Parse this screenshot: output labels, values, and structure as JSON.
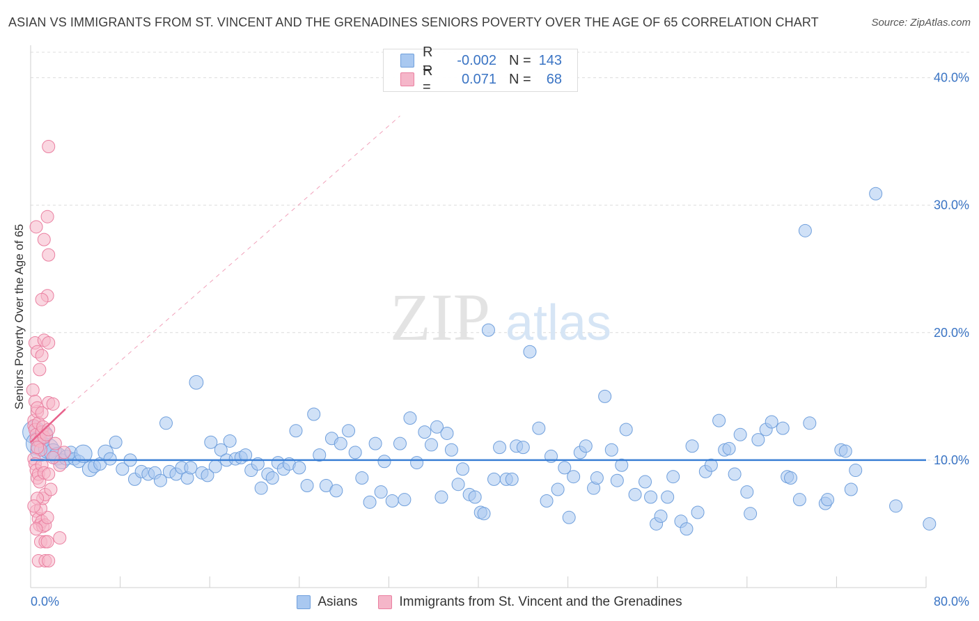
{
  "header": {
    "title": "ASIAN VS IMMIGRANTS FROM ST. VINCENT AND THE GRENADINES SENIORS POVERTY OVER THE AGE OF 65 CORRELATION CHART",
    "source": "Source: ZipAtlas.com"
  },
  "watermark": {
    "zip": "ZIP",
    "atlas": "atlas"
  },
  "stats": {
    "r_label": "R =",
    "n_label": "N =",
    "rows": [
      {
        "series": "Asians",
        "r": "-0.002",
        "n": "143"
      },
      {
        "series": "Immigrants from St. Vincent and the Grenadines",
        "r": "0.071",
        "n": "68"
      }
    ]
  },
  "colors": {
    "blue_fill": "#a9c8f0",
    "blue_stroke": "#6f9fdc",
    "blue_line": "#3a7fd5",
    "pink_fill": "#f5b6c9",
    "pink_stroke": "#ea7fa0",
    "pink_line": "#e8628c",
    "grid": "#dcdcdc",
    "tick_label": "#3a74c4"
  },
  "chart_data": {
    "type": "scatter",
    "title": "ASIAN VS IMMIGRANTS FROM ST. VINCENT AND THE GRENADINES SENIORS POVERTY OVER THE AGE OF 65 CORRELATION CHART",
    "xlabel": "",
    "ylabel": "Seniors Poverty Over the Age of 65",
    "xlim": [
      0,
      80
    ],
    "ylim": [
      0,
      42
    ],
    "x_tick_labels": [
      {
        "value": 0,
        "label": "0.0%"
      },
      {
        "value": 80,
        "label": "80.0%"
      }
    ],
    "y_tick_labels": [
      {
        "value": 10,
        "label": "10.0%"
      },
      {
        "value": 20,
        "label": "20.0%"
      },
      {
        "value": 30,
        "label": "30.0%"
      },
      {
        "value": 40,
        "label": "40.0%"
      }
    ],
    "x_minor_ticks": [
      0,
      8,
      16,
      24,
      32,
      40,
      48,
      56,
      64,
      72,
      80
    ],
    "grid": true,
    "legend_position": "bottom",
    "series": [
      {
        "name": "Asians",
        "color": "#a9c8f0",
        "trend": {
          "x": [
            0,
            80
          ],
          "y": [
            10.0,
            10.0
          ],
          "style": "solid"
        },
        "points": [
          [
            0.3,
            12.2,
            1.8
          ],
          [
            0.6,
            11.3,
            1.8
          ],
          [
            0.9,
            10.7,
            1.6
          ],
          [
            1.2,
            12.0,
            1.4
          ],
          [
            1.6,
            10.9,
            1.6
          ],
          [
            2.0,
            10.6,
            1.4
          ],
          [
            2.4,
            10.3,
            1.4
          ],
          [
            2.8,
            9.9,
            1.2
          ],
          [
            3.2,
            10.2,
            1.2
          ],
          [
            3.6,
            10.6,
            1.0
          ],
          [
            3.9,
            10.1,
            1.0
          ],
          [
            4.3,
            9.9,
            1.0
          ],
          [
            4.7,
            10.5,
            1.4
          ],
          [
            5.3,
            9.3,
            1.2
          ],
          [
            5.7,
            9.5,
            1.0
          ],
          [
            6.2,
            9.7,
            1.0
          ],
          [
            6.7,
            10.6,
            1.2
          ],
          [
            7.1,
            10.1,
            1.0
          ],
          [
            7.6,
            11.4,
            1.0
          ],
          [
            8.2,
            9.3,
            1.0
          ],
          [
            8.9,
            10.0,
            1.0
          ],
          [
            9.3,
            8.5,
            1.0
          ],
          [
            9.9,
            9.1,
            1.0
          ],
          [
            10.5,
            8.9,
            1.0
          ],
          [
            11.1,
            9.0,
            1.0
          ],
          [
            11.6,
            8.4,
            1.0
          ],
          [
            12.1,
            12.9,
            1.0
          ],
          [
            12.4,
            9.1,
            1.0
          ],
          [
            13.0,
            8.9,
            1.0
          ],
          [
            13.5,
            9.4,
            1.0
          ],
          [
            14.0,
            8.6,
            1.0
          ],
          [
            14.3,
            9.4,
            1.0
          ],
          [
            14.8,
            16.1,
            1.1
          ],
          [
            15.3,
            9.0,
            1.0
          ],
          [
            15.8,
            8.8,
            1.0
          ],
          [
            16.1,
            11.4,
            1.0
          ],
          [
            16.5,
            9.5,
            1.0
          ],
          [
            17.0,
            10.8,
            1.0
          ],
          [
            17.5,
            10.0,
            1.0
          ],
          [
            17.8,
            11.5,
            1.0
          ],
          [
            18.3,
            10.1,
            1.0
          ],
          [
            18.8,
            10.2,
            1.0
          ],
          [
            19.2,
            10.4,
            1.0
          ],
          [
            19.7,
            9.2,
            1.0
          ],
          [
            20.3,
            9.7,
            1.0
          ],
          [
            20.6,
            7.8,
            1.0
          ],
          [
            21.2,
            8.9,
            1.0
          ],
          [
            21.6,
            8.6,
            1.0
          ],
          [
            22.1,
            9.8,
            1.0
          ],
          [
            22.6,
            9.3,
            1.0
          ],
          [
            23.1,
            9.7,
            1.0
          ],
          [
            23.7,
            12.3,
            1.0
          ],
          [
            24.0,
            9.4,
            1.0
          ],
          [
            24.7,
            8.0,
            1.0
          ],
          [
            25.3,
            13.6,
            1.0
          ],
          [
            25.8,
            10.4,
            1.0
          ],
          [
            26.4,
            8.0,
            1.0
          ],
          [
            26.9,
            11.7,
            1.0
          ],
          [
            27.3,
            7.6,
            1.0
          ],
          [
            27.7,
            11.3,
            1.0
          ],
          [
            28.4,
            12.3,
            1.0
          ],
          [
            29.0,
            10.6,
            1.0
          ],
          [
            29.6,
            8.6,
            1.0
          ],
          [
            30.3,
            6.7,
            1.0
          ],
          [
            30.8,
            11.3,
            1.0
          ],
          [
            31.3,
            7.5,
            1.0
          ],
          [
            31.6,
            9.9,
            1.0
          ],
          [
            32.3,
            6.8,
            1.0
          ],
          [
            33.0,
            11.3,
            1.0
          ],
          [
            33.4,
            6.9,
            1.0
          ],
          [
            33.9,
            13.3,
            1.0
          ],
          [
            34.5,
            9.8,
            1.0
          ],
          [
            35.2,
            12.2,
            1.0
          ],
          [
            35.8,
            11.2,
            1.0
          ],
          [
            36.3,
            12.6,
            1.0
          ],
          [
            36.7,
            7.1,
            1.0
          ],
          [
            37.2,
            12.1,
            1.0
          ],
          [
            37.6,
            10.8,
            1.0
          ],
          [
            38.2,
            8.1,
            1.0
          ],
          [
            38.6,
            9.3,
            1.0
          ],
          [
            39.2,
            7.3,
            1.0
          ],
          [
            39.7,
            7.1,
            1.0
          ],
          [
            40.2,
            5.9,
            1.0
          ],
          [
            40.5,
            5.8,
            1.0
          ],
          [
            40.9,
            20.2,
            1.0
          ],
          [
            41.4,
            8.5,
            1.0
          ],
          [
            41.9,
            11.0,
            1.0
          ],
          [
            42.5,
            8.5,
            1.0
          ],
          [
            43.0,
            8.5,
            1.0
          ],
          [
            43.4,
            11.1,
            1.0
          ],
          [
            44.0,
            11.0,
            1.0
          ],
          [
            44.6,
            18.5,
            1.0
          ],
          [
            45.4,
            12.5,
            1.0
          ],
          [
            46.1,
            6.8,
            1.0
          ],
          [
            46.5,
            10.3,
            1.0
          ],
          [
            47.1,
            7.7,
            1.0
          ],
          [
            47.7,
            9.4,
            1.0
          ],
          [
            48.1,
            5.5,
            1.0
          ],
          [
            48.5,
            8.7,
            1.0
          ],
          [
            49.1,
            10.6,
            1.0
          ],
          [
            49.6,
            11.1,
            1.0
          ],
          [
            50.3,
            7.8,
            1.0
          ],
          [
            50.6,
            8.6,
            1.0
          ],
          [
            51.3,
            15.0,
            1.0
          ],
          [
            51.9,
            10.8,
            1.0
          ],
          [
            52.4,
            8.4,
            1.0
          ],
          [
            52.8,
            9.6,
            1.0
          ],
          [
            53.2,
            12.4,
            1.0
          ],
          [
            54.0,
            7.3,
            1.0
          ],
          [
            54.9,
            8.3,
            1.0
          ],
          [
            55.4,
            7.1,
            1.0
          ],
          [
            55.9,
            5.0,
            1.0
          ],
          [
            56.3,
            5.6,
            1.0
          ],
          [
            56.9,
            7.1,
            1.0
          ],
          [
            57.4,
            8.7,
            1.0
          ],
          [
            58.1,
            5.2,
            1.0
          ],
          [
            58.6,
            4.6,
            1.0
          ],
          [
            59.1,
            11.1,
            1.0
          ],
          [
            59.6,
            5.9,
            1.0
          ],
          [
            60.3,
            9.1,
            1.0
          ],
          [
            60.8,
            9.6,
            1.0
          ],
          [
            61.5,
            13.1,
            1.0
          ],
          [
            62.0,
            10.8,
            1.0
          ],
          [
            62.4,
            10.9,
            1.0
          ],
          [
            62.9,
            8.9,
            1.0
          ],
          [
            63.4,
            12.0,
            1.0
          ],
          [
            64.0,
            7.5,
            1.0
          ],
          [
            64.3,
            5.8,
            1.0
          ],
          [
            65.0,
            11.6,
            1.0
          ],
          [
            65.7,
            12.4,
            1.0
          ],
          [
            66.2,
            13.0,
            1.0
          ],
          [
            67.2,
            12.5,
            1.0
          ],
          [
            67.6,
            8.7,
            1.0
          ],
          [
            67.9,
            8.6,
            1.0
          ],
          [
            68.7,
            6.9,
            1.0
          ],
          [
            69.2,
            28.0,
            1.0
          ],
          [
            69.6,
            12.9,
            1.0
          ],
          [
            71.0,
            6.6,
            1.0
          ],
          [
            71.2,
            6.9,
            1.0
          ],
          [
            72.4,
            10.8,
            1.0
          ],
          [
            72.8,
            10.7,
            1.0
          ],
          [
            73.3,
            7.7,
            1.0
          ],
          [
            73.7,
            9.2,
            1.0
          ],
          [
            75.5,
            30.9,
            1.0
          ],
          [
            77.3,
            6.4,
            1.0
          ],
          [
            80.3,
            5.0,
            1.0
          ]
        ]
      },
      {
        "name": "Immigrants from St. Vincent and the Grenadines",
        "color": "#f5b6c9",
        "trend": {
          "x": [
            0,
            3.1
          ],
          "y": [
            11.4,
            14.0
          ],
          "style": "solid",
          "extended_dashed_to": [
            33.0,
            37.0
          ]
        },
        "points": [
          [
            0.2,
            15.5,
            1.0
          ],
          [
            0.3,
            13.1,
            1.0
          ],
          [
            0.3,
            12.7,
            1.0
          ],
          [
            0.4,
            12.4,
            1.0
          ],
          [
            0.5,
            12.0,
            1.0
          ],
          [
            0.5,
            11.6,
            1.0
          ],
          [
            0.6,
            13.8,
            1.0
          ],
          [
            0.7,
            12.9,
            1.0
          ],
          [
            0.8,
            11.5,
            1.0
          ],
          [
            0.9,
            10.8,
            1.0
          ],
          [
            1.0,
            12.2,
            1.0
          ],
          [
            1.1,
            12.6,
            1.0
          ],
          [
            1.2,
            11.8,
            1.0
          ],
          [
            1.4,
            12.0,
            1.0
          ],
          [
            1.6,
            12.4,
            1.0
          ],
          [
            0.3,
            10.1,
            1.0
          ],
          [
            0.4,
            9.7,
            1.0
          ],
          [
            0.5,
            9.2,
            1.0
          ],
          [
            0.6,
            8.6,
            1.0
          ],
          [
            0.7,
            8.9,
            1.0
          ],
          [
            0.8,
            8.3,
            1.0
          ],
          [
            1.0,
            9.6,
            1.0
          ],
          [
            1.2,
            9.0,
            1.0
          ],
          [
            1.6,
            8.9,
            1.0
          ],
          [
            0.4,
            19.2,
            1.0
          ],
          [
            0.6,
            18.5,
            1.0
          ],
          [
            0.8,
            17.1,
            1.0
          ],
          [
            1.0,
            18.2,
            1.0
          ],
          [
            1.2,
            19.4,
            1.0
          ],
          [
            1.6,
            19.2,
            1.0
          ],
          [
            0.5,
            28.3,
            1.0
          ],
          [
            1.2,
            27.3,
            1.0
          ],
          [
            1.5,
            29.1,
            1.0
          ],
          [
            1.6,
            26.1,
            1.0
          ],
          [
            1.5,
            22.9,
            1.0
          ],
          [
            1.0,
            22.6,
            1.0
          ],
          [
            1.6,
            34.6,
            1.0
          ],
          [
            0.4,
            14.6,
            1.0
          ],
          [
            0.6,
            14.1,
            1.0
          ],
          [
            1.0,
            13.7,
            1.0
          ],
          [
            1.6,
            14.5,
            1.0
          ],
          [
            2.0,
            14.4,
            1.0
          ],
          [
            0.5,
            6.0,
            1.0
          ],
          [
            0.7,
            5.4,
            1.0
          ],
          [
            0.8,
            4.9,
            1.0
          ],
          [
            1.0,
            5.2,
            1.0
          ],
          [
            1.1,
            4.8,
            1.0
          ],
          [
            1.3,
            4.9,
            1.0
          ],
          [
            1.5,
            5.5,
            1.0
          ],
          [
            0.9,
            6.2,
            1.0
          ],
          [
            1.1,
            7.0,
            1.0
          ],
          [
            1.3,
            7.3,
            1.0
          ],
          [
            1.8,
            7.7,
            1.0
          ],
          [
            0.6,
            7.0,
            1.0
          ],
          [
            0.9,
            3.6,
            1.0
          ],
          [
            1.3,
            3.6,
            1.0
          ],
          [
            1.5,
            3.6,
            1.0
          ],
          [
            2.6,
            3.9,
            1.0
          ],
          [
            0.7,
            2.1,
            1.0
          ],
          [
            1.3,
            2.1,
            1.0
          ],
          [
            1.6,
            2.1,
            1.0
          ],
          [
            2.6,
            9.6,
            1.0
          ],
          [
            2.0,
            10.2,
            1.0
          ],
          [
            3.0,
            10.6,
            1.0
          ],
          [
            0.6,
            11.0,
            1.0
          ],
          [
            2.2,
            11.3,
            1.0
          ],
          [
            0.3,
            6.4,
            1.0
          ],
          [
            0.5,
            4.6,
            1.0
          ]
        ]
      }
    ]
  }
}
